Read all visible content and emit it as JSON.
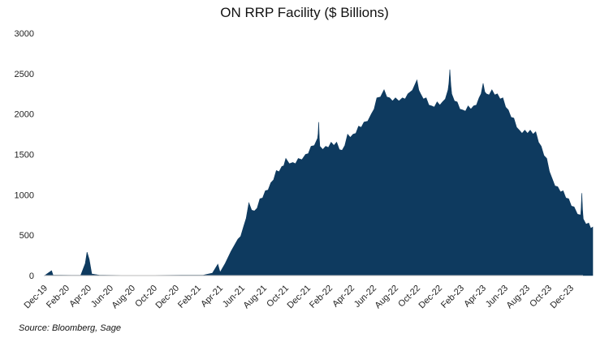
{
  "chart_data": {
    "type": "area",
    "title": "ON RRP Facility ($ Billions)",
    "source": "Source: Bloomberg, Sage",
    "xlabel": "",
    "ylabel": "",
    "ylim": [
      0,
      3000
    ],
    "yticks": [
      0,
      500,
      1000,
      1500,
      2000,
      2500,
      3000
    ],
    "xticks": [
      "Dec-19",
      "Feb-20",
      "Apr-20",
      "Jun-20",
      "Aug-20",
      "Oct-20",
      "Dec-20",
      "Feb-21",
      "Apr-21",
      "Jun-21",
      "Aug-21",
      "Oct-21",
      "Dec-21",
      "Feb-22",
      "Apr-22",
      "Jun-22",
      "Aug-22",
      "Oct-22",
      "Dec-22",
      "Feb-23",
      "Apr-23",
      "Jun-23",
      "Aug-23",
      "Oct-23",
      "Dec-23"
    ],
    "grid": false,
    "color": "#0e3a5f",
    "series": [
      {
        "name": "ON RRP",
        "points": [
          [
            "2019-12-01",
            0
          ],
          [
            "2019-12-20",
            60
          ],
          [
            "2019-12-24",
            5
          ],
          [
            "2020-01-15",
            5
          ],
          [
            "2020-02-15",
            3
          ],
          [
            "2020-03-10",
            5
          ],
          [
            "2020-03-22",
            150
          ],
          [
            "2020-03-27",
            290
          ],
          [
            "2020-04-03",
            200
          ],
          [
            "2020-04-10",
            20
          ],
          [
            "2020-05-01",
            5
          ],
          [
            "2020-07-01",
            2
          ],
          [
            "2020-10-01",
            2
          ],
          [
            "2020-12-15",
            5
          ],
          [
            "2021-02-15",
            5
          ],
          [
            "2021-03-10",
            30
          ],
          [
            "2021-03-25",
            140
          ],
          [
            "2021-04-01",
            40
          ],
          [
            "2021-04-15",
            150
          ],
          [
            "2021-05-01",
            300
          ],
          [
            "2021-05-20",
            450
          ],
          [
            "2021-06-05",
            600
          ],
          [
            "2021-06-20",
            900
          ],
          [
            "2021-07-05",
            800
          ],
          [
            "2021-07-20",
            950
          ],
          [
            "2021-08-05",
            1050
          ],
          [
            "2021-08-20",
            1150
          ],
          [
            "2021-09-05",
            1300
          ],
          [
            "2021-09-20",
            1350
          ],
          [
            "2021-10-01",
            1450
          ],
          [
            "2021-10-20",
            1400
          ],
          [
            "2021-11-05",
            1450
          ],
          [
            "2021-11-25",
            1500
          ],
          [
            "2021-12-10",
            1600
          ],
          [
            "2021-12-28",
            1700
          ],
          [
            "2021-12-31",
            1900
          ],
          [
            "2022-01-04",
            1600
          ],
          [
            "2022-01-20",
            1600
          ],
          [
            "2022-02-05",
            1650
          ],
          [
            "2022-02-20",
            1650
          ],
          [
            "2022-03-05",
            1550
          ],
          [
            "2022-03-20",
            1750
          ],
          [
            "2022-04-05",
            1750
          ],
          [
            "2022-04-20",
            1850
          ],
          [
            "2022-05-05",
            1900
          ],
          [
            "2022-05-25",
            2000
          ],
          [
            "2022-06-10",
            2200
          ],
          [
            "2022-06-30",
            2300
          ],
          [
            "2022-07-15",
            2200
          ],
          [
            "2022-08-01",
            2200
          ],
          [
            "2022-08-20",
            2200
          ],
          [
            "2022-09-05",
            2250
          ],
          [
            "2022-09-30",
            2420
          ],
          [
            "2022-10-10",
            2250
          ],
          [
            "2022-10-25",
            2200
          ],
          [
            "2022-11-10",
            2100
          ],
          [
            "2022-11-25",
            2150
          ],
          [
            "2022-12-10",
            2150
          ],
          [
            "2022-12-25",
            2300
          ],
          [
            "2022-12-30",
            2550
          ],
          [
            "2023-01-05",
            2250
          ],
          [
            "2023-01-20",
            2150
          ],
          [
            "2023-02-05",
            2050
          ],
          [
            "2023-02-20",
            2100
          ],
          [
            "2023-03-05",
            2100
          ],
          [
            "2023-03-20",
            2200
          ],
          [
            "2023-03-31",
            2380
          ],
          [
            "2023-04-10",
            2250
          ],
          [
            "2023-04-25",
            2300
          ],
          [
            "2023-05-10",
            2250
          ],
          [
            "2023-05-25",
            2200
          ],
          [
            "2023-06-10",
            2050
          ],
          [
            "2023-06-25",
            1950
          ],
          [
            "2023-07-10",
            1800
          ],
          [
            "2023-07-25",
            1800
          ],
          [
            "2023-08-10",
            1800
          ],
          [
            "2023-08-25",
            1780
          ],
          [
            "2023-09-10",
            1600
          ],
          [
            "2023-09-25",
            1450
          ],
          [
            "2023-10-10",
            1200
          ],
          [
            "2023-10-25",
            1100
          ],
          [
            "2023-11-10",
            1050
          ],
          [
            "2023-11-25",
            950
          ],
          [
            "2023-12-10",
            850
          ],
          [
            "2023-12-28",
            750
          ],
          [
            "2023-12-31",
            1020
          ],
          [
            "2024-01-05",
            700
          ],
          [
            "2024-01-20",
            650
          ],
          [
            "2024-01-31",
            600
          ]
        ]
      }
    ]
  }
}
